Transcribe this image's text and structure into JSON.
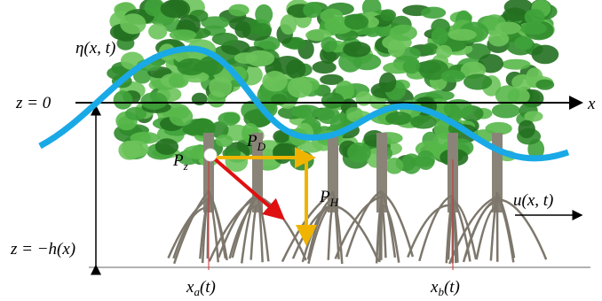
{
  "labels": {
    "eta": "η(x, t)",
    "z0": "z = 0",
    "x_axis": "x",
    "p_z": {
      "main": "P",
      "sub": "z"
    },
    "p_d": {
      "main": "P",
      "sub": "D"
    },
    "p_h": {
      "main": "P",
      "sub": "H"
    },
    "u": "u(x, t)",
    "z_h": "z = −h(x)",
    "x_a": {
      "main": "x",
      "sub": "a",
      "rest": "(t)"
    },
    "x_b": {
      "main": "x",
      "sub": "b",
      "rest": "(t)"
    }
  }
}
